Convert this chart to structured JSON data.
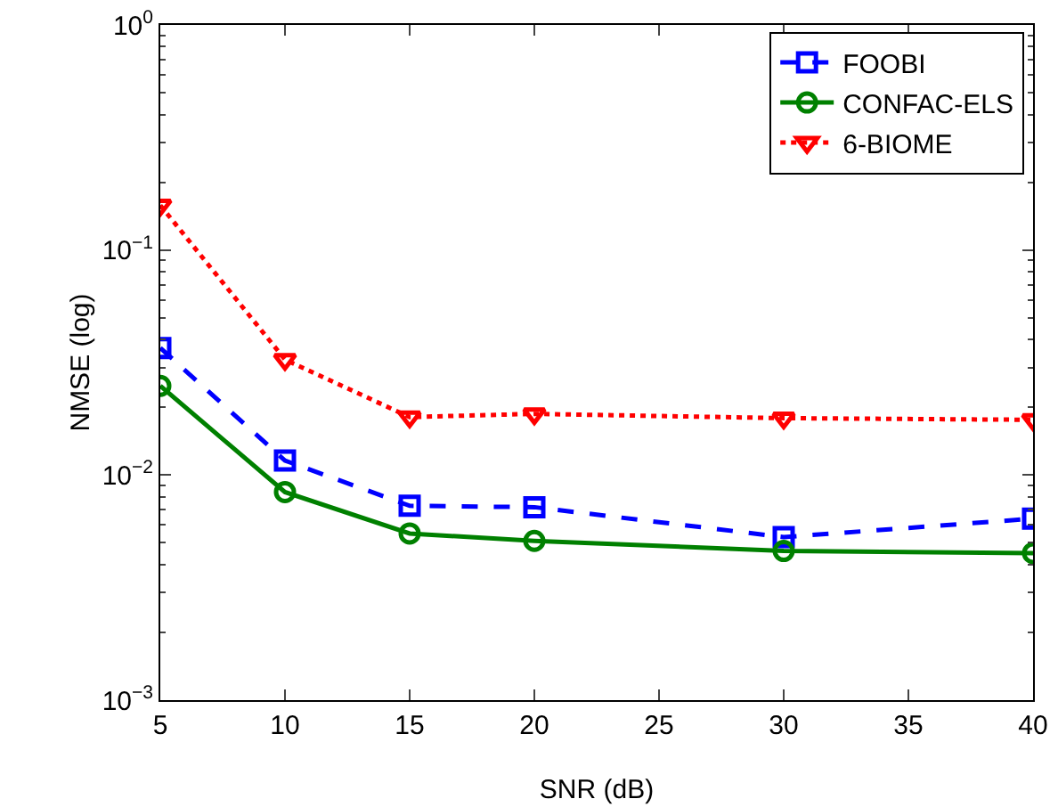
{
  "chart_data": {
    "type": "line",
    "xlabel": "SNR (dB)",
    "ylabel": "NMSE (log)",
    "x": [
      5,
      10,
      15,
      20,
      30,
      40
    ],
    "series": [
      {
        "name": "FOOBI",
        "color": "#0000ff",
        "values": [
          0.0367,
          0.0116,
          0.0073,
          0.0072,
          0.0053,
          0.0064
        ],
        "line_style": "dashed",
        "marker": "square"
      },
      {
        "name": "CONFAC-ELS",
        "color": "#008000",
        "values": [
          0.0249,
          0.0084,
          0.0055,
          0.0051,
          0.0046,
          0.0045
        ],
        "line_style": "solid",
        "marker": "circle"
      },
      {
        "name": "6-BIOME",
        "color": "#ff0000",
        "values": [
          0.158,
          0.0326,
          0.0181,
          0.0187,
          0.0179,
          0.0176
        ],
        "line_style": "dotted",
        "marker": "triangle"
      }
    ],
    "log": "y",
    "xlim": [
      5,
      40
    ],
    "xticks": [
      5,
      10,
      15,
      20,
      25,
      30,
      35,
      40
    ],
    "ylim": [
      0.001,
      1
    ],
    "yticks": [
      {
        "value": 0.001,
        "label": "10$^{−3}$"
      },
      {
        "value": 0.01,
        "label": "10$^{−2}$"
      },
      {
        "value": 0.1,
        "label": "10$^{−1}$"
      },
      {
        "value": 1,
        "label": "10$^{0}$"
      }
    ],
    "grid": false,
    "legend": "top right"
  }
}
